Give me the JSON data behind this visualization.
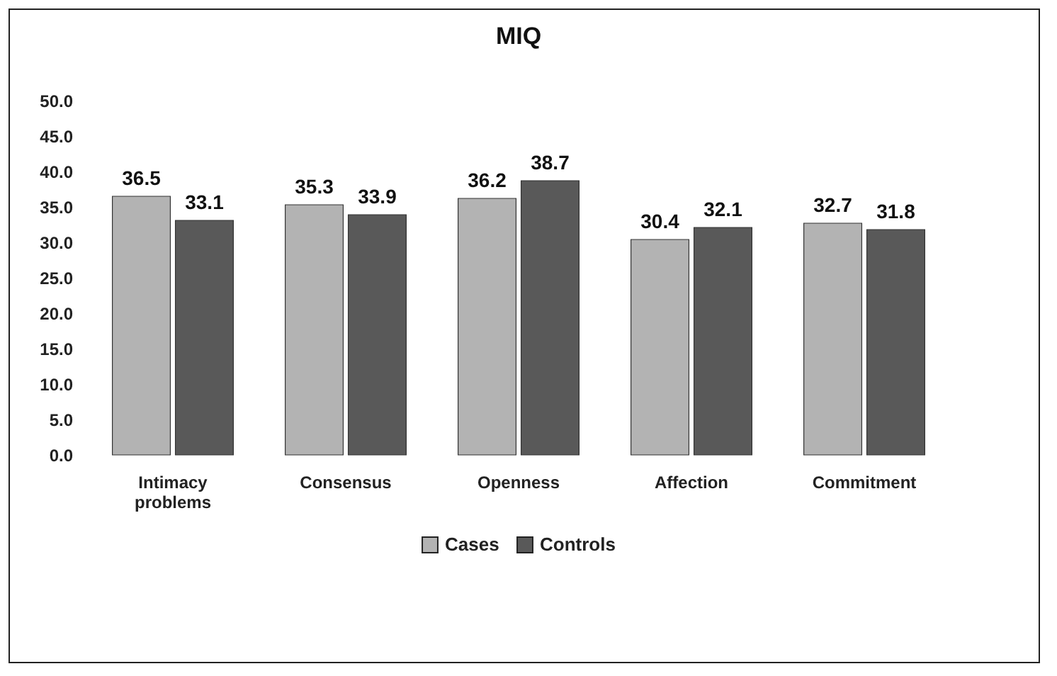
{
  "chart_data": {
    "type": "bar",
    "title": "MIQ",
    "categories": [
      "Intimacy problems",
      "Consensus",
      "Openness",
      "Affection",
      "Commitment"
    ],
    "series": [
      {
        "name": "Cases",
        "color": "#b3b3b3",
        "values": [
          36.5,
          35.3,
          36.2,
          30.4,
          32.7
        ]
      },
      {
        "name": "Controls",
        "color": "#595959",
        "values": [
          33.1,
          33.9,
          38.7,
          32.1,
          31.8
        ]
      }
    ],
    "ylim": [
      0,
      50
    ],
    "yticks": [
      {
        "value": 0,
        "label": "0.0"
      },
      {
        "value": 5,
        "label": "5.0"
      },
      {
        "value": 10,
        "label": "10.0"
      },
      {
        "value": 15,
        "label": "15.0"
      },
      {
        "value": 20,
        "label": "20.0"
      },
      {
        "value": 25,
        "label": "25.0"
      },
      {
        "value": 30,
        "label": "30.0"
      },
      {
        "value": 35,
        "label": "35.0"
      },
      {
        "value": 40,
        "label": "40.0"
      },
      {
        "value": 45,
        "label": "45.0"
      },
      {
        "value": 50,
        "label": "50.0"
      }
    ],
    "data_labels": true,
    "grid": false,
    "legend": "bottom"
  }
}
